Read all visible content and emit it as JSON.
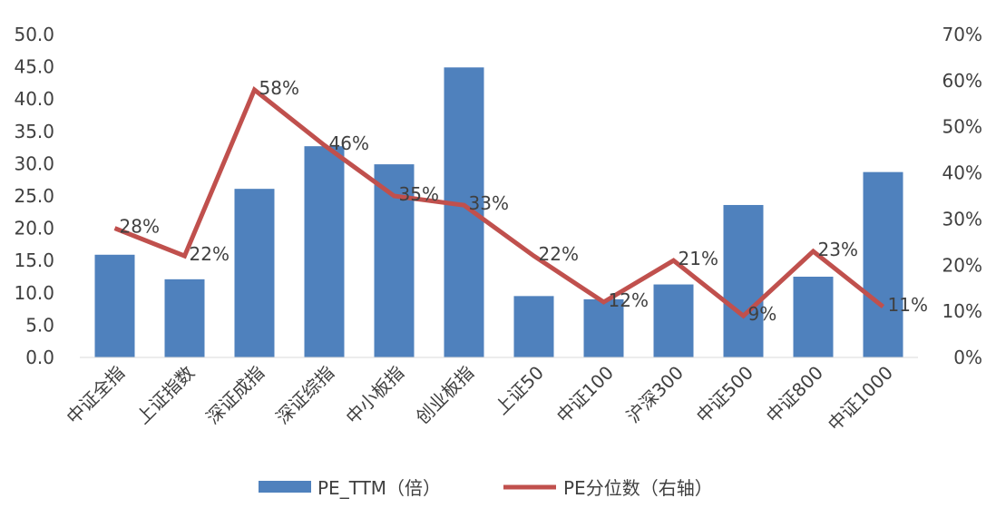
{
  "chart_data": {
    "type": "bar",
    "categories": [
      "中证全指",
      "上证指数",
      "深证成指",
      "深证综指",
      "中小板指",
      "创业板指",
      "上证50",
      "中证100",
      "沪深300",
      "中证500",
      "中证800",
      "中证1000"
    ],
    "series": [
      {
        "name": "PE_TTM（倍）",
        "type": "bar",
        "axis": "left",
        "color": "#4F81BD",
        "values": [
          15.9,
          12.1,
          26.1,
          32.7,
          29.9,
          44.9,
          9.5,
          9.0,
          11.3,
          23.6,
          12.5,
          28.7
        ]
      },
      {
        "name": "PE分位数（右轴）",
        "type": "line",
        "axis": "right",
        "color": "#C0504D",
        "values": [
          28,
          22,
          58,
          46,
          35,
          33,
          22,
          12,
          21,
          9,
          23,
          11
        ],
        "labels": [
          "28%",
          "22%",
          "58%",
          "46%",
          "35%",
          "33%",
          "22%",
          "12%",
          "21%",
          "9%",
          "23%",
          "11%"
        ]
      }
    ],
    "y_left": {
      "min": 0,
      "max": 50,
      "ticks": [
        "0.0",
        "5.0",
        "10.0",
        "15.0",
        "20.0",
        "25.0",
        "30.0",
        "35.0",
        "40.0",
        "45.0",
        "50.0"
      ]
    },
    "y_right": {
      "min": 0,
      "max": 70,
      "ticks": [
        "0%",
        "10%",
        "20%",
        "30%",
        "40%",
        "50%",
        "60%",
        "70%"
      ]
    },
    "grid": false,
    "legend": "bottom"
  }
}
